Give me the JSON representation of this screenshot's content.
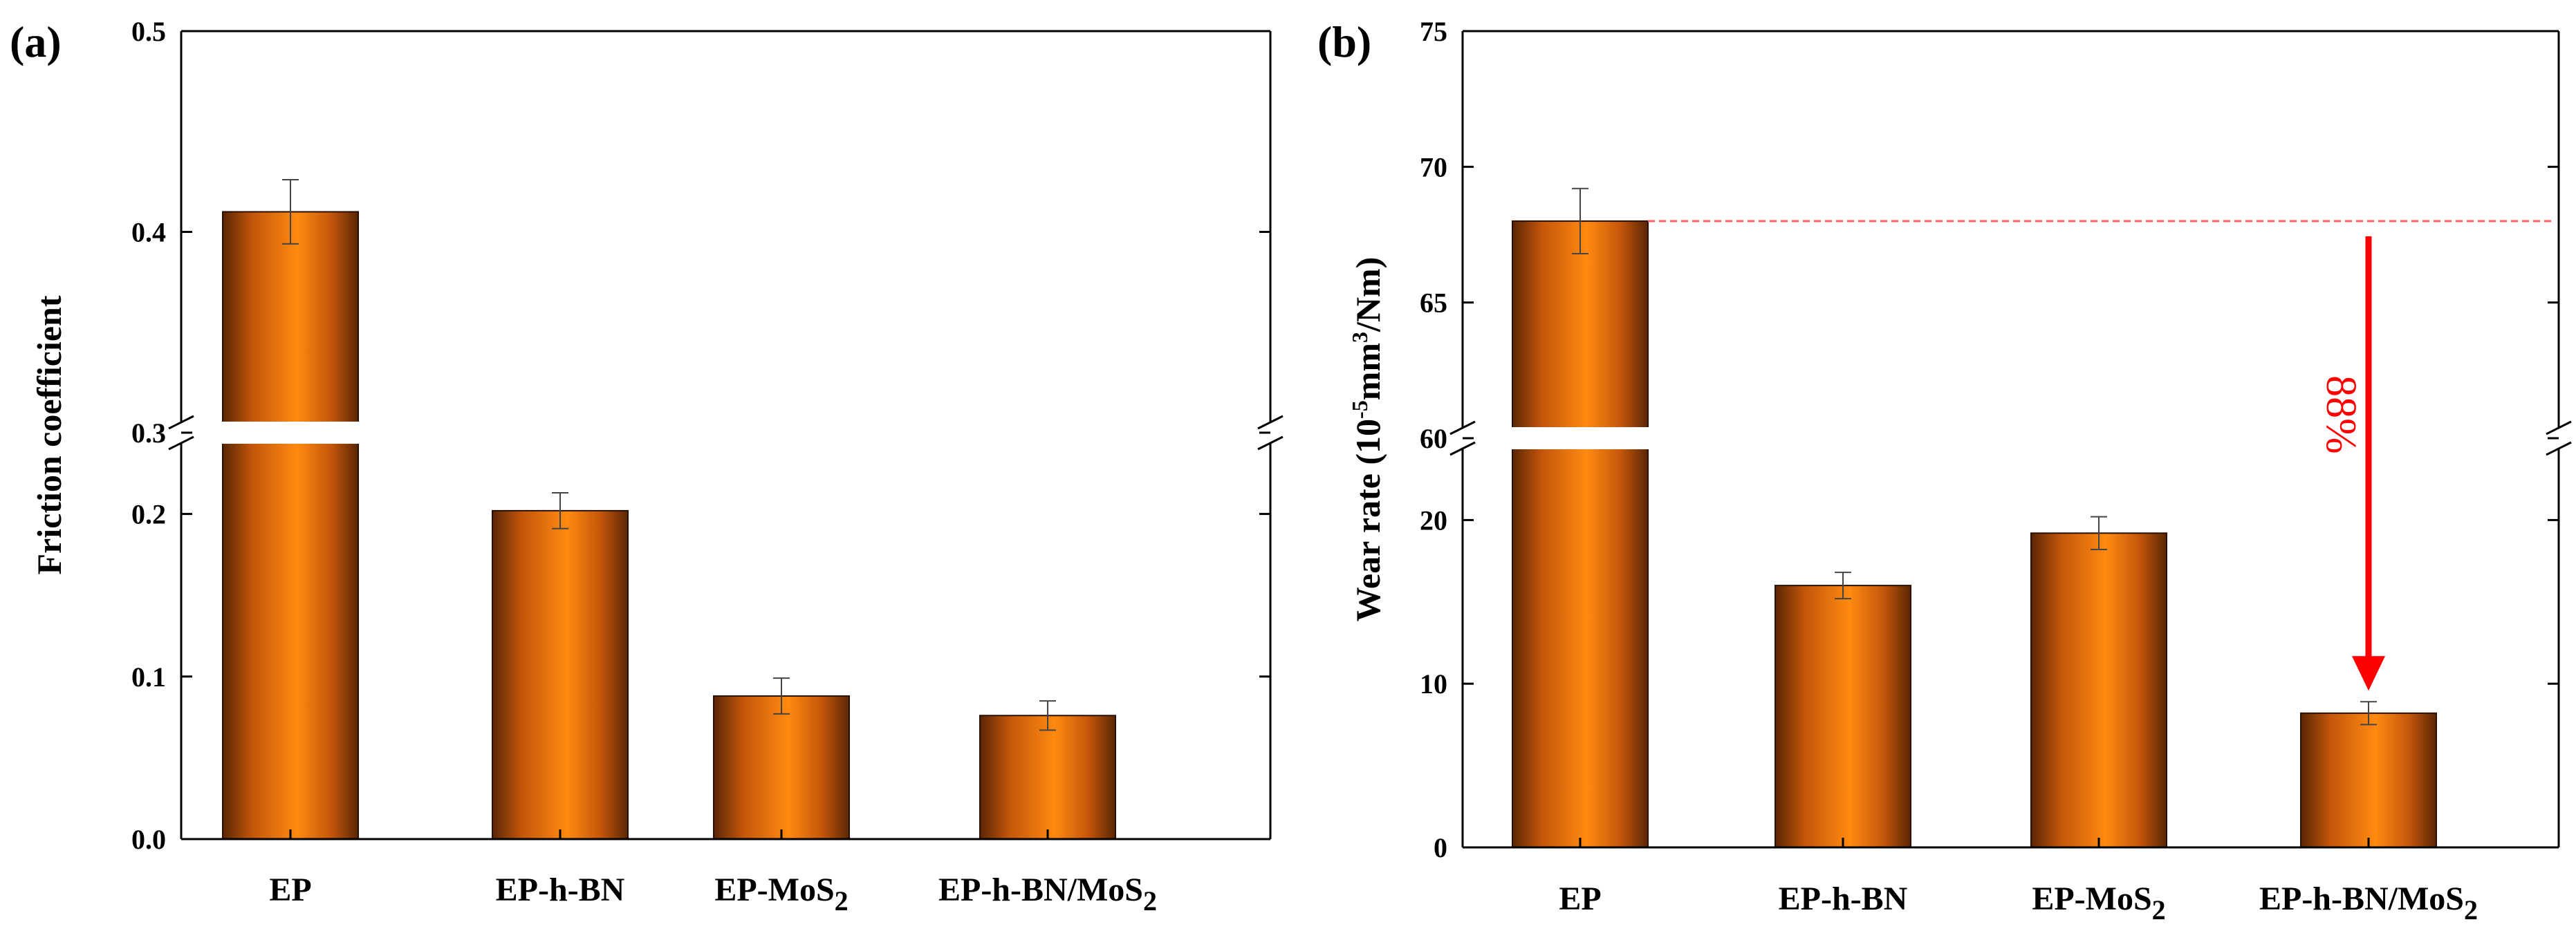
{
  "colors": {
    "bar_dark": "#5a2604",
    "bar_mid": "#c4560b",
    "bar_light": "#ff8a10",
    "axis": "#000000",
    "error_bar": "#444444",
    "annotation": "#ff0000",
    "ref_line": "#ff6060"
  },
  "chart_data": [
    {
      "id": "a",
      "type": "bar",
      "panel_label": "(a)",
      "title": "",
      "xlabel": "",
      "ylabel": "Friction coefficient",
      "categories": [
        "EP",
        "EP-h-BN",
        "EP-MoS",
        "EP-h-BN/MoS"
      ],
      "category_subscripts": [
        "",
        "",
        "2",
        "2"
      ],
      "values": [
        0.41,
        0.202,
        0.088,
        0.076
      ],
      "errors": [
        0.016,
        0.011,
        0.011,
        0.009
      ],
      "ylim": [
        0,
        0.5
      ],
      "axis_break": {
        "lower": [
          0,
          0.25
        ],
        "upper": [
          0.3,
          0.5
        ]
      },
      "yticks_lower": [
        0.0,
        0.1,
        0.2
      ],
      "yticks_upper": [
        0.3,
        0.4,
        0.5
      ],
      "ytick_labels_lower": [
        "0.0",
        "0.1",
        "0.2"
      ],
      "ytick_labels_upper": [
        "0.3",
        "0.4",
        "0.5"
      ],
      "grid": false
    },
    {
      "id": "b",
      "type": "bar",
      "panel_label": "(b)",
      "title": "",
      "xlabel": "",
      "ylabel_parts": [
        "Wear rate (10",
        "-5",
        "mm",
        "3",
        "/Nm)"
      ],
      "ylabel": "Wear rate (10-5mm3/Nm)",
      "categories": [
        "EP",
        "EP-h-BN",
        "EP-MoS",
        "EP-h-BN/MoS"
      ],
      "category_subscripts": [
        "",
        "",
        "2",
        "2"
      ],
      "values": [
        68.0,
        16.0,
        19.2,
        8.2
      ],
      "errors": [
        1.2,
        0.8,
        1.0,
        0.7
      ],
      "ylim": [
        0,
        75
      ],
      "axis_break": {
        "lower": [
          0,
          25
        ],
        "upper": [
          60,
          75
        ]
      },
      "yticks_lower": [
        0,
        10,
        20
      ],
      "yticks_upper": [
        60,
        65,
        70,
        75
      ],
      "ytick_labels_lower": [
        "0",
        "10",
        "20"
      ],
      "ytick_labels_upper": [
        "60",
        "65",
        "70",
        "75"
      ],
      "grid": false,
      "annotation": {
        "text": "88%",
        "from_value": 68.0,
        "to_category": "EP-h-BN/MoS2"
      }
    }
  ]
}
